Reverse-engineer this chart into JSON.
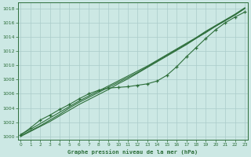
{
  "bg_color": "#cce8e4",
  "grid_color": "#aaccca",
  "line_color": "#2d6e3a",
  "xlabel": "Graphe pression niveau de la mer (hPa)",
  "ylim": [
    999.5,
    1018.8
  ],
  "xlim": [
    -0.3,
    23.3
  ],
  "yticks": [
    1000,
    1002,
    1004,
    1006,
    1008,
    1010,
    1012,
    1014,
    1016,
    1018
  ],
  "xticks": [
    0,
    1,
    2,
    3,
    4,
    5,
    6,
    7,
    8,
    9,
    10,
    11,
    12,
    13,
    14,
    15,
    16,
    17,
    18,
    19,
    20,
    21,
    22,
    23
  ],
  "series_linear1": [
    1000.1,
    1000.8,
    1001.5,
    1002.3,
    1003.1,
    1004.0,
    1004.8,
    1005.5,
    1006.2,
    1006.9,
    1007.6,
    1008.3,
    1009.0,
    1009.8,
    1010.6,
    1011.4,
    1012.2,
    1013.0,
    1013.8,
    1014.7,
    1015.5,
    1016.3,
    1017.1,
    1018.0
  ],
  "series_linear2": [
    1000.3,
    1001.0,
    1001.8,
    1002.6,
    1003.4,
    1004.2,
    1005.0,
    1005.7,
    1006.4,
    1007.1,
    1007.8,
    1008.5,
    1009.2,
    1009.9,
    1010.7,
    1011.5,
    1012.3,
    1013.1,
    1013.9,
    1014.8,
    1015.6,
    1016.4,
    1017.2,
    1018.1
  ],
  "series_linear3": [
    1000.0,
    1000.7,
    1001.4,
    1002.1,
    1002.9,
    1003.7,
    1004.5,
    1005.2,
    1005.9,
    1006.6,
    1007.4,
    1008.1,
    1008.9,
    1009.7,
    1010.5,
    1011.3,
    1012.1,
    1012.9,
    1013.8,
    1014.6,
    1015.5,
    1016.3,
    1017.1,
    1018.0
  ],
  "series_markers": [
    1000.2,
    1001.2,
    1002.3,
    1003.0,
    1003.8,
    1004.5,
    1005.3,
    1006.0,
    1006.5,
    1006.8,
    1006.9,
    1007.0,
    1007.2,
    1007.4,
    1007.8,
    1008.6,
    1009.8,
    1011.2,
    1012.5,
    1013.8,
    1015.0,
    1016.0,
    1016.8,
    1017.5
  ]
}
